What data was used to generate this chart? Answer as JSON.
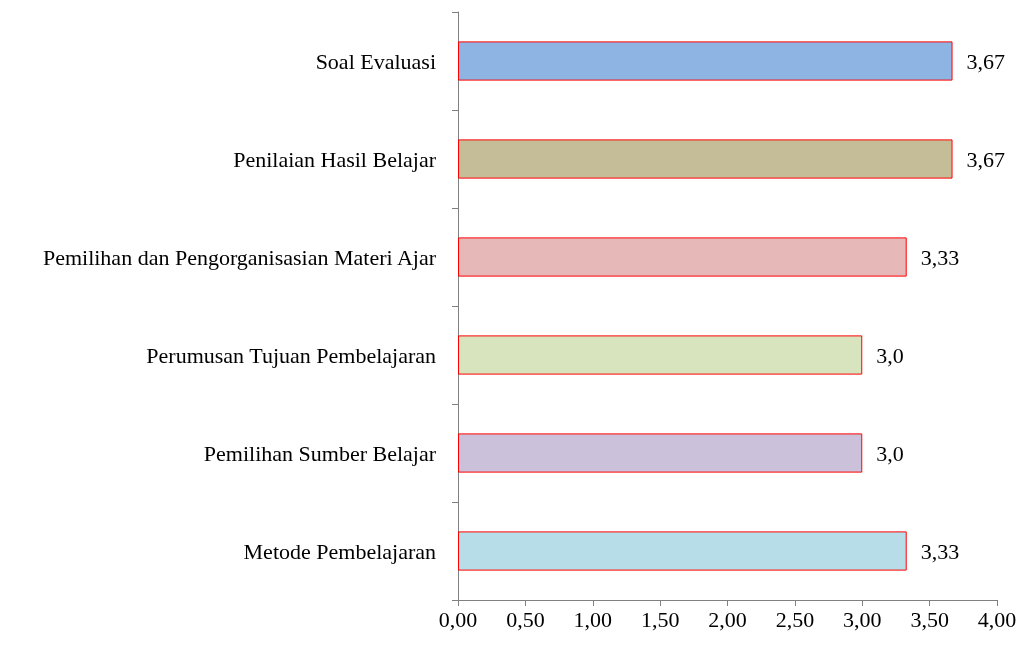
{
  "chart_data": {
    "type": "bar",
    "orientation": "horizontal",
    "categories": [
      "Soal Evaluasi",
      "Penilaian Hasil Belajar",
      "Pemilihan dan Pengorganisasian Materi Ajar",
      "Perumusan Tujuan Pembelajaran",
      "Pemilihan Sumber Belajar",
      "Metode Pembelajaran"
    ],
    "values": [
      3.67,
      3.67,
      3.33,
      3.0,
      3.0,
      3.33
    ],
    "value_labels": [
      "3,67",
      "3,67",
      "3,33",
      "3,0",
      "3,0",
      "3,33"
    ],
    "colors": [
      "#8eb4e3",
      "#c4bd97",
      "#e6b9b8",
      "#d7e4bd",
      "#ccc1da",
      "#b7dee8"
    ],
    "xlim": [
      0,
      4
    ],
    "xticks": [
      {
        "value": 0,
        "label": "0,00"
      },
      {
        "value": 0.5,
        "label": "0,50"
      },
      {
        "value": 1,
        "label": "1,00"
      },
      {
        "value": 1.5,
        "label": "1,50"
      },
      {
        "value": 2,
        "label": "2,00"
      },
      {
        "value": 2.5,
        "label": "2,50"
      },
      {
        "value": 3,
        "label": "3,00"
      },
      {
        "value": 3.5,
        "label": "3,50"
      },
      {
        "value": 4,
        "label": "4,00"
      }
    ],
    "grid": false
  }
}
